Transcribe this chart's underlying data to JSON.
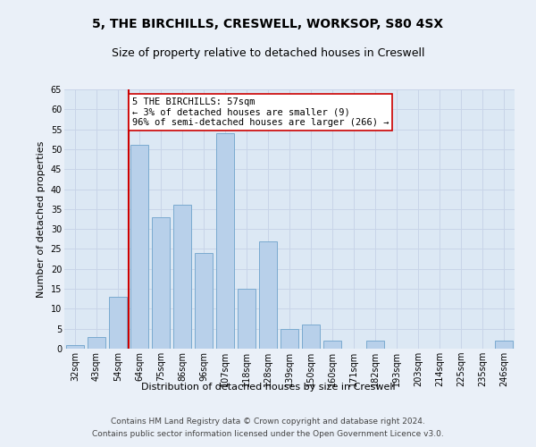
{
  "title1": "5, THE BIRCHILLS, CRESWELL, WORKSOP, S80 4SX",
  "title2": "Size of property relative to detached houses in Creswell",
  "xlabel": "Distribution of detached houses by size in Creswell",
  "ylabel": "Number of detached properties",
  "categories": [
    "32sqm",
    "43sqm",
    "54sqm",
    "64sqm",
    "75sqm",
    "86sqm",
    "96sqm",
    "107sqm",
    "118sqm",
    "128sqm",
    "139sqm",
    "150sqm",
    "160sqm",
    "171sqm",
    "182sqm",
    "193sqm",
    "203sqm",
    "214sqm",
    "225sqm",
    "235sqm",
    "246sqm"
  ],
  "values": [
    1,
    3,
    13,
    51,
    33,
    36,
    24,
    54,
    15,
    27,
    5,
    6,
    2,
    0,
    2,
    0,
    0,
    0,
    0,
    0,
    2
  ],
  "bar_color": "#b8d0ea",
  "bar_edge_color": "#7aaad0",
  "property_line_x": 2.5,
  "property_line_color": "#cc0000",
  "annotation_text": "5 THE BIRCHILLS: 57sqm\n← 3% of detached houses are smaller (9)\n96% of semi-detached houses are larger (266) →",
  "annotation_box_color": "#ffffff",
  "annotation_box_edge_color": "#cc0000",
  "ylim": [
    0,
    65
  ],
  "yticks": [
    0,
    5,
    10,
    15,
    20,
    25,
    30,
    35,
    40,
    45,
    50,
    55,
    60,
    65
  ],
  "grid_color": "#c8d4e8",
  "background_color": "#dce8f4",
  "fig_background_color": "#eaf0f8",
  "footer1": "Contains HM Land Registry data © Crown copyright and database right 2024.",
  "footer2": "Contains public sector information licensed under the Open Government Licence v3.0.",
  "title1_fontsize": 10,
  "title2_fontsize": 9,
  "ylabel_fontsize": 8,
  "xlabel_fontsize": 8,
  "tick_fontsize": 7,
  "footer_fontsize": 6.5,
  "annotation_fontsize": 7.5
}
